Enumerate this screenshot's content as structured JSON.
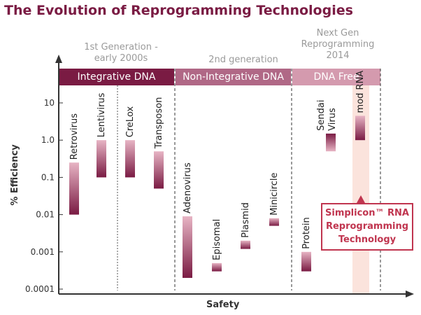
{
  "title": "The Evolution of Reprogramming Technologies",
  "generations": [
    {
      "line1": "1st Generation -",
      "line2": "early 2000s"
    },
    {
      "line1": "2nd generation",
      "line2": ""
    },
    {
      "line1": "Next Gen",
      "line2": "Reprogramming",
      "line3": "2014"
    }
  ],
  "bands": [
    "Integrative DNA",
    "Non-Integrative DNA",
    "DNA Free"
  ],
  "callout": {
    "line1": "Simplicon™ RNA",
    "line2": "Reprogramming",
    "line3": "Technology"
  },
  "colors": {
    "dark": "#7a1b43",
    "mid": "#b06886",
    "light": "#d49aae",
    "highlight": "#fbe3dc",
    "callout": "#c0354f"
  },
  "chart_data": {
    "type": "bar",
    "xlabel": "Safety",
    "ylabel": "% Efficiency",
    "yscale": "log",
    "ylim": [
      0.0001,
      10
    ],
    "yticks": [
      {
        "value": 10,
        "label": "10"
      },
      {
        "value": 1,
        "label": "1.0"
      },
      {
        "value": 0.1,
        "label": "0.1"
      },
      {
        "value": 0.01,
        "label": "0.01"
      },
      {
        "value": 0.001,
        "label": "0.001"
      },
      {
        "value": 0.0001,
        "label": "0.0001"
      }
    ],
    "categories": [
      "Retrovirus",
      "Lentivirus",
      "CreLox",
      "Transposon",
      "Adenovirus",
      "Episomal",
      "Plasmid",
      "Minicircle",
      "Protein",
      "Sendai Virus",
      "mod RNA"
    ],
    "ranges": [
      {
        "name": "Retrovirus",
        "low": 0.01,
        "high": 0.25
      },
      {
        "name": "Lentivirus",
        "low": 0.1,
        "high": 1.0
      },
      {
        "name": "CreLox",
        "low": 0.1,
        "high": 1.0
      },
      {
        "name": "Transposon",
        "low": 0.05,
        "high": 0.5
      },
      {
        "name": "Adenovirus",
        "low": 0.0002,
        "high": 0.009
      },
      {
        "name": "Episomal",
        "low": 0.0003,
        "high": 0.0005
      },
      {
        "name": "Plasmid",
        "low": 0.0012,
        "high": 0.002
      },
      {
        "name": "Minicircle",
        "low": 0.005,
        "high": 0.008
      },
      {
        "name": "Protein",
        "low": 0.0003,
        "high": 0.001
      },
      {
        "name": "Sendai Virus",
        "low": 0.5,
        "high": 1.5
      },
      {
        "name": "mod RNA",
        "low": 1.0,
        "high": 4.5
      }
    ],
    "grid": false,
    "legend": "none"
  }
}
